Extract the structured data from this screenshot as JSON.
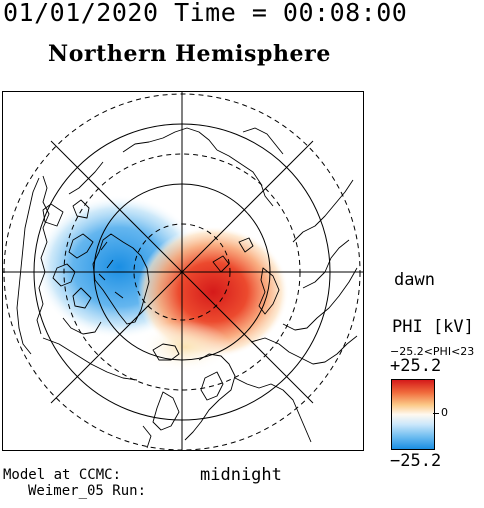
{
  "header": {
    "timestamp": "01/01/2020 Time = 00:08:00",
    "hemisphere_title": "Northern Hemisphere"
  },
  "map": {
    "projection": "polar stereographic, north pole centred",
    "labels": {
      "dawn": "dawn",
      "midnight": "midnight"
    },
    "contour_circles": "solid and dashed latitude rings",
    "potential_cells": [
      {
        "name": "dusk-side negative cell",
        "color": "#1a8ee3"
      },
      {
        "name": "dawn-side positive cell",
        "color": "#d51a1a"
      }
    ]
  },
  "colorbar": {
    "title": "PHI [kV]",
    "range_text": "−25.2<PHI<23",
    "max_label": "+25.2",
    "mid_label": "0",
    "min_label": "−25.2",
    "colors": {
      "max": "#d51a1a",
      "mid": "#ffffff",
      "min": "#1a8ee3"
    }
  },
  "footer": {
    "model_label": "Model at CCMC:",
    "run_label": "Weimer_05 Run:"
  }
}
